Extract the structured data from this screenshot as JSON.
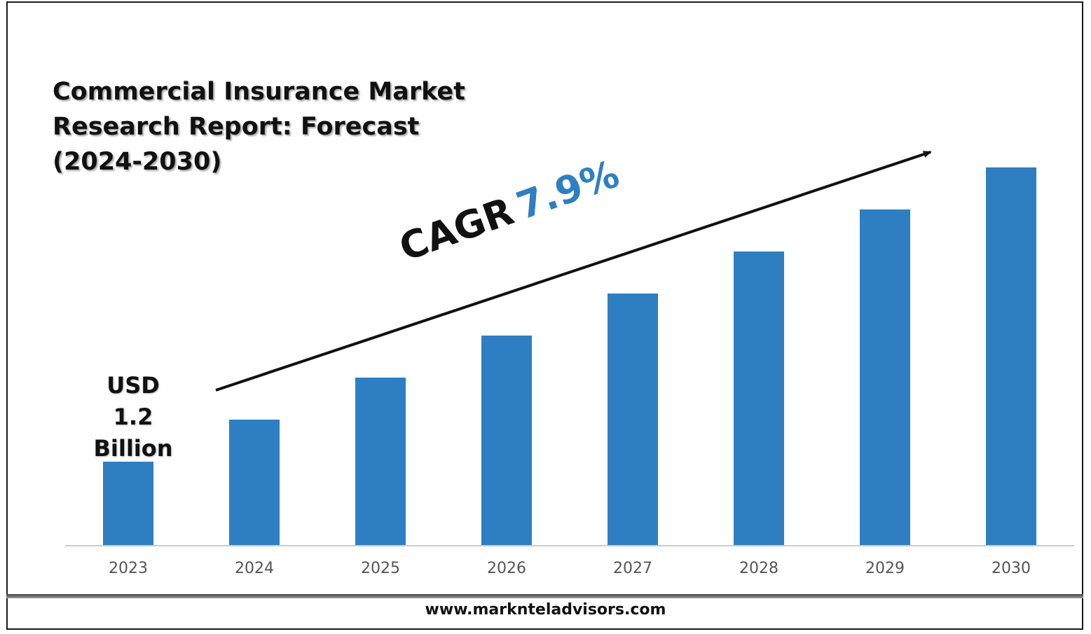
{
  "title_lines": [
    "Commercial Insurance Market",
    "Research Report: Forecast",
    "(2024-2030)"
  ],
  "first_value_lines": [
    "USD",
    "1.2",
    "Billion"
  ],
  "cagr": {
    "label": "CAGR",
    "value": "7.9%"
  },
  "footer": {
    "url": "www.marknteladvisors.com"
  },
  "colors": {
    "bar": "#2e7fc1",
    "cagr_value": "#2e7fc1",
    "axis": "#cccccc",
    "arrow": "#111111"
  },
  "chart_data": {
    "type": "bar",
    "title": "Commercial Insurance Market Research Report: Forecast (2024-2030)",
    "categories": [
      "2023",
      "2024",
      "2025",
      "2026",
      "2027",
      "2028",
      "2029",
      "2030"
    ],
    "series": [
      {
        "values": [
          1.2,
          1.8,
          2.4,
          3.0,
          3.6,
          4.2,
          4.8,
          5.4
        ]
      }
    ],
    "data_labels": {
      "2023": "USD 1.2 Billion"
    },
    "unit": "USD Billion",
    "ylim": [
      0,
      7.8
    ],
    "grid": false,
    "legend": "none",
    "annotation": "CAGR 7.9%"
  }
}
